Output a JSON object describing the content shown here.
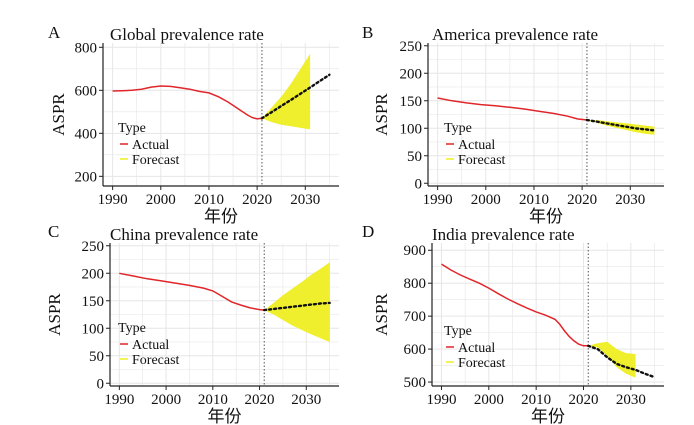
{
  "colors": {
    "actual": "#e0262b",
    "forecast_band": "#eeee22",
    "forecast_line": "#111111",
    "grid": "#e6e6e6",
    "divider": "#555555"
  },
  "legend": {
    "title": "Type",
    "actual_label": "Actual",
    "forecast_label": "Forecast"
  },
  "chart_data": [
    {
      "panel": "A",
      "type": "line",
      "title": "Global prevalence rate",
      "xlabel": "年份",
      "ylabel": "ASPR",
      "xlim": [
        1988,
        2037
      ],
      "ylim": [
        155,
        820
      ],
      "xticks": [
        1990,
        2000,
        2010,
        2020,
        2030
      ],
      "yticks": [
        200,
        400,
        600,
        800
      ],
      "grid": true,
      "legend_position": "left",
      "divider_year": 2021,
      "series": [
        {
          "name": "Actual",
          "x": [
            1990,
            1992,
            1994,
            1996,
            1998,
            2000,
            2002,
            2004,
            2006,
            2008,
            2010,
            2012,
            2014,
            2016,
            2018,
            2019,
            2020,
            2021
          ],
          "y": [
            597,
            598,
            600,
            605,
            615,
            620,
            618,
            612,
            605,
            595,
            588,
            570,
            545,
            515,
            485,
            473,
            467,
            470
          ]
        },
        {
          "name": "Forecast",
          "x": [
            2021,
            2023,
            2025,
            2027,
            2029,
            2031,
            2033,
            2035
          ],
          "y": [
            470,
            498,
            527,
            555,
            584,
            613,
            643,
            672
          ],
          "lower": [
            470,
            452,
            440,
            433,
            425,
            418,
            null,
            null
          ],
          "upper": [
            470,
            520,
            570,
            630,
            700,
            770,
            null,
            null
          ]
        }
      ]
    },
    {
      "panel": "B",
      "type": "line",
      "title": "America prevalence rate",
      "xlabel": "年份",
      "ylabel": "ASPR",
      "xlim": [
        1988,
        2037
      ],
      "ylim": [
        -5,
        255
      ],
      "xticks": [
        1990,
        2000,
        2010,
        2020,
        2030
      ],
      "yticks": [
        0,
        50,
        100,
        150,
        200,
        250
      ],
      "grid": true,
      "legend_position": "left",
      "divider_year": 2021,
      "series": [
        {
          "name": "Actual",
          "x": [
            1990,
            1993,
            1996,
            1999,
            2002,
            2005,
            2008,
            2011,
            2014,
            2017,
            2019,
            2021
          ],
          "y": [
            155,
            150,
            146,
            143,
            141,
            138,
            135,
            131,
            127,
            122,
            117,
            115
          ]
        },
        {
          "name": "Forecast",
          "x": [
            2021,
            2023,
            2025,
            2027,
            2029,
            2031,
            2033,
            2035
          ],
          "y": [
            115,
            112,
            109,
            106,
            103,
            100,
            98,
            96
          ],
          "lower": [
            115,
            110,
            105,
            101,
            97,
            93,
            90,
            88
          ],
          "upper": [
            115,
            115,
            113,
            111,
            109,
            107,
            105,
            103
          ]
        }
      ]
    },
    {
      "panel": "C",
      "type": "line",
      "title": "China prevalence rate",
      "xlabel": "年份",
      "ylabel": "ASPR",
      "xlim": [
        1988,
        2037
      ],
      "ylim": [
        -5,
        255
      ],
      "xticks": [
        1990,
        2000,
        2010,
        2020,
        2030
      ],
      "yticks": [
        0,
        50,
        100,
        150,
        200,
        250
      ],
      "grid": true,
      "legend_position": "left",
      "divider_year": 2021,
      "series": [
        {
          "name": "Actual",
          "x": [
            1990,
            1993,
            1996,
            1999,
            2002,
            2005,
            2008,
            2010,
            2012,
            2014,
            2016,
            2018,
            2020,
            2021
          ],
          "y": [
            200,
            195,
            190,
            186,
            182,
            178,
            173,
            168,
            158,
            148,
            142,
            137,
            134,
            133
          ]
        },
        {
          "name": "Forecast",
          "x": [
            2021,
            2023,
            2025,
            2027,
            2029,
            2031,
            2033,
            2035
          ],
          "y": [
            133,
            135,
            137,
            139,
            141,
            143,
            145,
            146
          ],
          "lower": [
            133,
            125,
            115,
            105,
            97,
            89,
            82,
            75
          ],
          "upper": [
            133,
            146,
            160,
            172,
            184,
            197,
            208,
            220
          ]
        }
      ]
    },
    {
      "panel": "D",
      "type": "line",
      "title": "India prevalence rate",
      "xlabel": "年份",
      "ylabel": "ASPR",
      "xlim": [
        1988,
        2037
      ],
      "ylim": [
        488,
        922
      ],
      "xticks": [
        1990,
        2000,
        2010,
        2020,
        2030
      ],
      "yticks": [
        500,
        600,
        700,
        800,
        900
      ],
      "grid": true,
      "legend_position": "left",
      "divider_year": 2021,
      "series": [
        {
          "name": "Actual",
          "x": [
            1990,
            1992,
            1994,
            1996,
            1998,
            2000,
            2002,
            2004,
            2006,
            2008,
            2010,
            2012,
            2014,
            2015,
            2016,
            2017,
            2018,
            2019,
            2020,
            2021
          ],
          "y": [
            858,
            840,
            825,
            812,
            800,
            785,
            768,
            752,
            738,
            725,
            713,
            703,
            690,
            675,
            655,
            638,
            625,
            615,
            610,
            610
          ]
        },
        {
          "name": "Forecast",
          "x": [
            2021,
            2023,
            2025,
            2027,
            2029,
            2031,
            2033,
            2035
          ],
          "y": [
            610,
            600,
            575,
            555,
            545,
            537,
            525,
            515
          ],
          "lower": [
            610,
            605,
            580,
            545,
            525,
            513,
            null,
            null
          ],
          "upper": [
            610,
            618,
            622,
            600,
            588,
            585,
            null,
            null
          ]
        }
      ]
    }
  ]
}
